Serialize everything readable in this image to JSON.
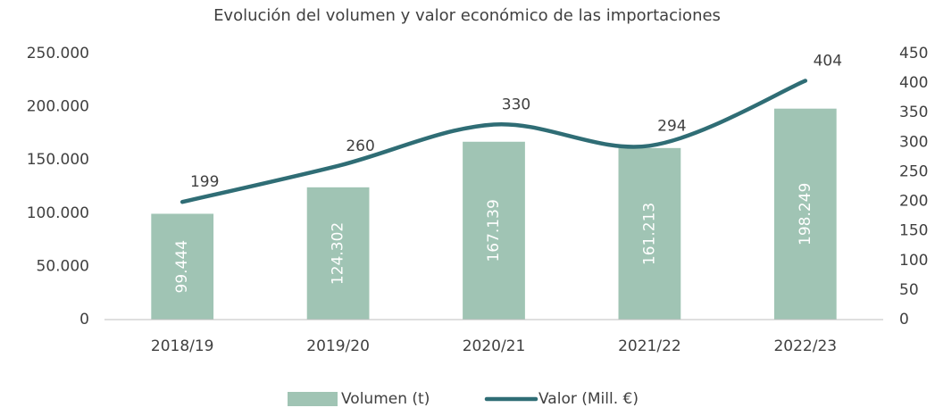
{
  "chart_data": {
    "type": "bar",
    "title": "Evolución del volumen y valor económico de las importaciones",
    "categories": [
      "2018/19",
      "2019/20",
      "2020/21",
      "2021/22",
      "2022/23"
    ],
    "series": [
      {
        "name": "Volumen (t)",
        "type": "bar",
        "color": "#a0c4b4",
        "values": [
          99444,
          124302,
          167139,
          161213,
          198249
        ],
        "value_labels": [
          "99.444",
          "124.302",
          "167.139",
          "161.213",
          "198.249"
        ]
      },
      {
        "name": "Valor (Mill. €)",
        "type": "line",
        "axis": "y2",
        "color": "#2f6d75",
        "values": [
          199,
          260,
          330,
          294,
          404
        ]
      }
    ],
    "ylim": [
      0,
      250000
    ],
    "yticks": [
      0,
      {
        "value": 50000,
        "label": "50.000"
      },
      {
        "value": 100000,
        "label": "100.000"
      },
      {
        "value": 150000,
        "label": "150.000"
      },
      {
        "value": 200000,
        "label": "200.000"
      },
      {
        "value": 250000,
        "label": "250.000"
      }
    ],
    "y2lim": [
      0,
      450
    ],
    "y2ticks": [
      0,
      50,
      100,
      150,
      200,
      250,
      300,
      350,
      400,
      450
    ],
    "legend": "bottom"
  }
}
